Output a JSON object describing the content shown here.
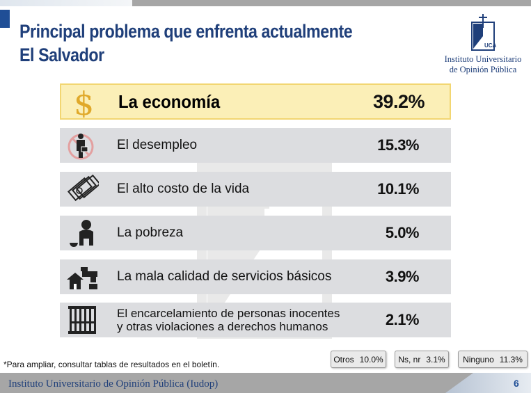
{
  "title_line1": "Principal problema que enfrenta actualmente",
  "title_line2": "El Salvador",
  "logo": {
    "name_line1": "Instituto Universitario",
    "name_line2": "de Opinión Pública",
    "mark": "UCA"
  },
  "chart_data": {
    "type": "table",
    "rows": [
      {
        "label": "La economía",
        "label_line2": "",
        "value": "39.2%",
        "icon": "dollar-icon",
        "highlight": true
      },
      {
        "label": "El desempleo",
        "label_line2": "",
        "value": "15.3%",
        "icon": "unemployed-person-icon",
        "highlight": false
      },
      {
        "label": "El alto costo de la vida",
        "label_line2": "",
        "value": "10.1%",
        "icon": "money-bills-icon",
        "highlight": false
      },
      {
        "label": "La pobreza",
        "label_line2": "",
        "value": "5.0%",
        "icon": "poor-person-icon",
        "highlight": false
      },
      {
        "label": "La mala calidad de servicios básicos",
        "label_line2": "",
        "value": "3.9%",
        "icon": "house-faucet-icon",
        "highlight": false
      },
      {
        "label": "El encarcelamiento de personas inocentes",
        "label_line2": "y otras violaciones a derechos humanos",
        "value": "2.1%",
        "icon": "jail-bars-icon",
        "highlight": false
      }
    ],
    "others": [
      {
        "label": "Otros",
        "value": "10.0%"
      },
      {
        "label": "Ns, nr",
        "value": "3.1%"
      },
      {
        "label": "Ninguno",
        "value": "11.3%"
      }
    ]
  },
  "footnote": "*Para ampliar, consultar tablas de resultados en el boletín.",
  "footer": {
    "institute": "Instituto Universitario de Opinión Pública (Iudop)",
    "page": "6"
  },
  "colors": {
    "title": "#1f3f7a",
    "highlight_bg": "#fbefb7",
    "highlight_border": "#f2d672",
    "row_bg": "#dcdde0",
    "dollar": "#e0a92a"
  }
}
